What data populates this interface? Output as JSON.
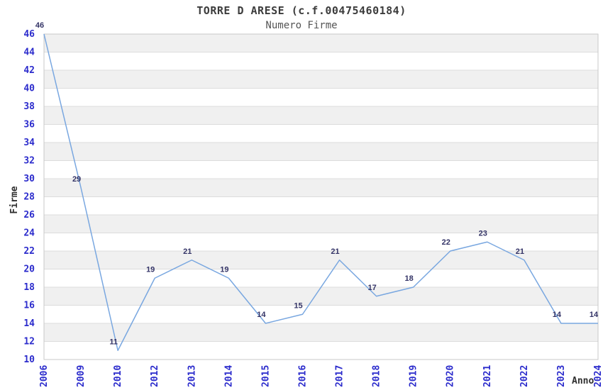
{
  "chart_data": {
    "type": "line",
    "title": "TORRE D ARESE (c.f.00475460184)",
    "subtitle": "Numero Firme",
    "xlabel": "Anno",
    "ylabel": "Firme",
    "categories": [
      "2006",
      "2009",
      "2010",
      "2012",
      "2013",
      "2014",
      "2015",
      "2016",
      "2017",
      "2018",
      "2019",
      "2020",
      "2021",
      "2022",
      "2023",
      "2024"
    ],
    "values": [
      46,
      29,
      11,
      19,
      21,
      19,
      14,
      15,
      21,
      17,
      18,
      22,
      23,
      21,
      14,
      14
    ],
    "ylim": [
      10,
      46
    ],
    "ytick_step": 2,
    "grid": true,
    "legend": "none",
    "point_labels": true,
    "colors": {
      "line": "#79a7e0",
      "tick_label": "#2b2bcc",
      "value_label": "#333366",
      "band": "#f0f0f0",
      "gridline": "#dcdcdc",
      "border": "#c9c9c9",
      "title": "#3c3c3c",
      "subtitle": "#555555",
      "axis_title": "#2f2f2f",
      "background": "#ffffff"
    }
  }
}
